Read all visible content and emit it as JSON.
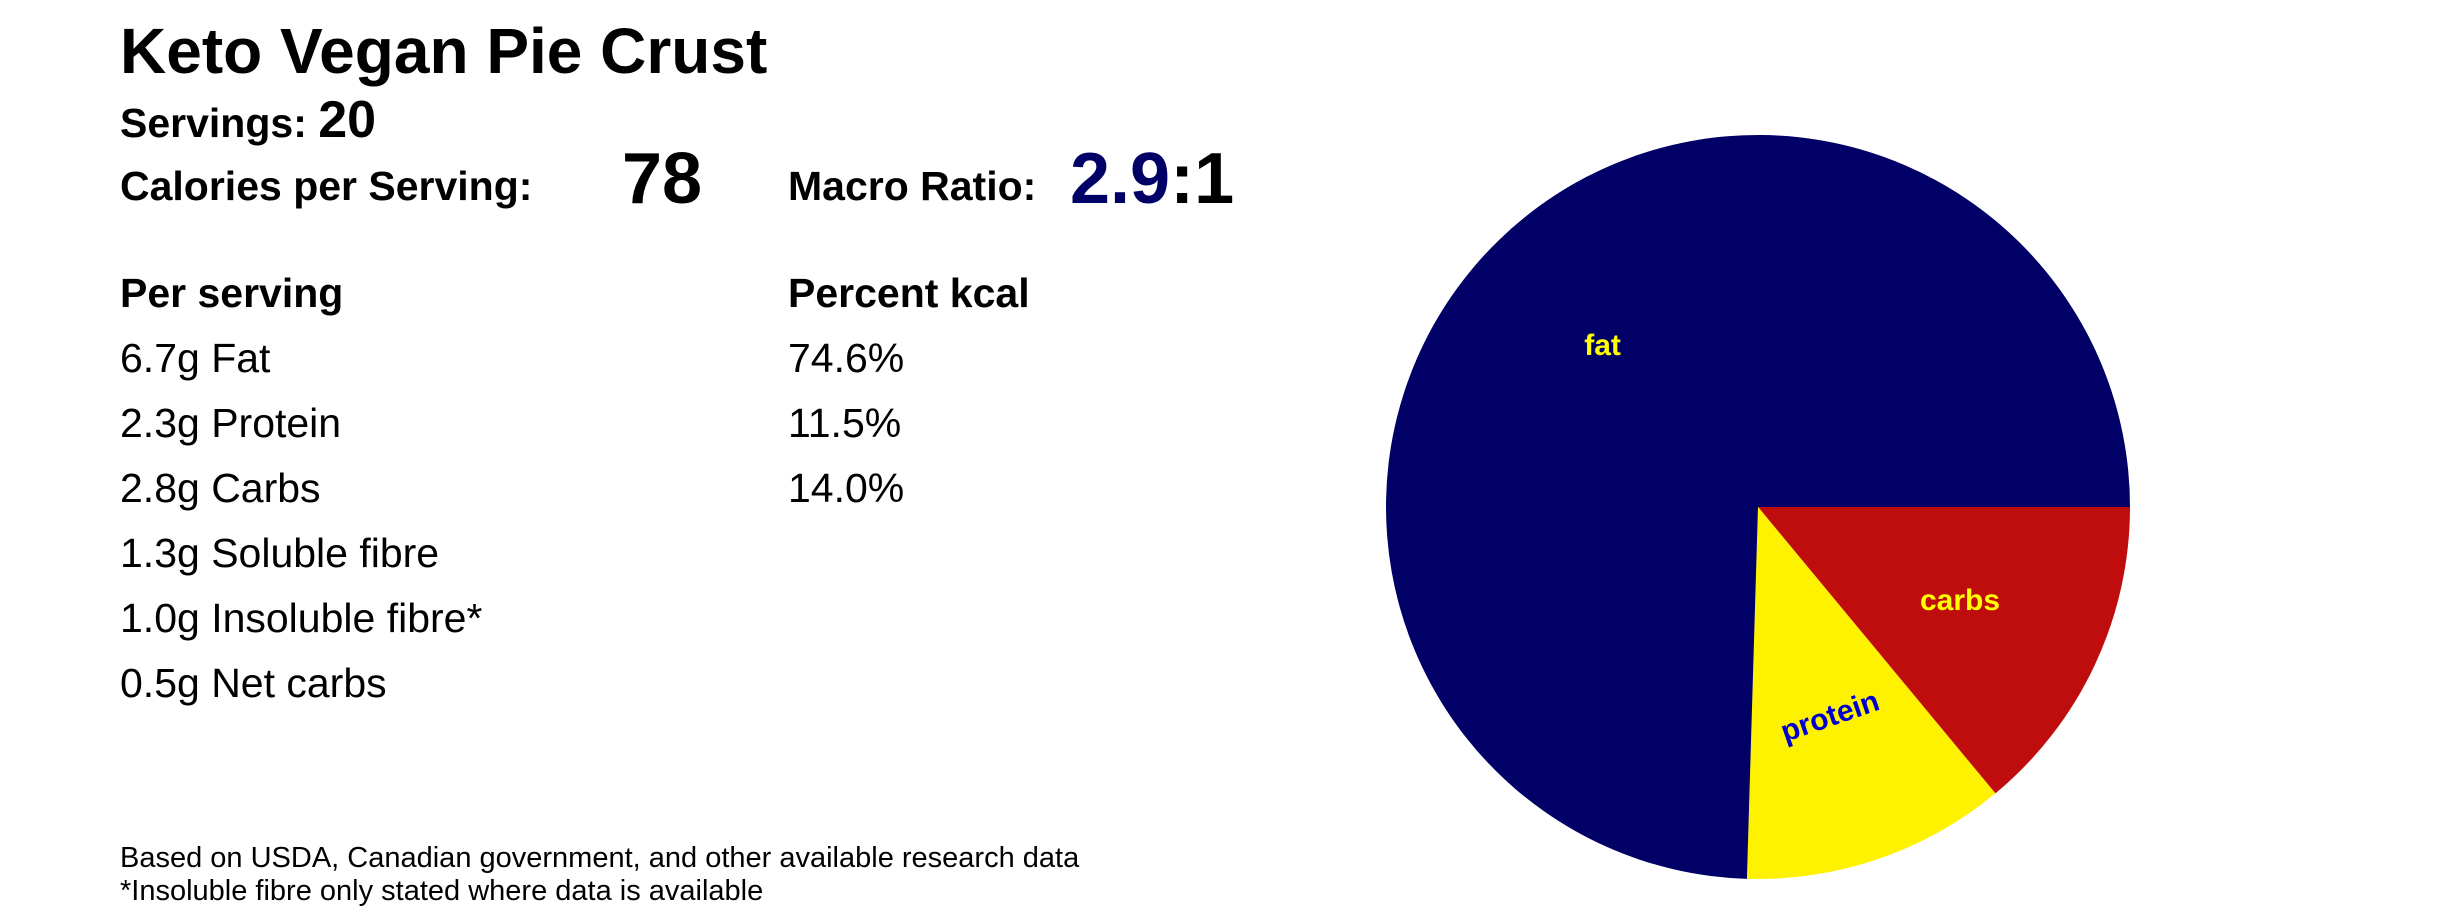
{
  "title": "Keto Vegan Pie Crust",
  "servings": {
    "label": "Servings:",
    "value": "20"
  },
  "calories": {
    "label": "Calories per Serving:",
    "value": "78"
  },
  "macro_ratio": {
    "label": "Macro Ratio:",
    "number": "2.9",
    "suffix": ":1"
  },
  "per_serving": {
    "header": "Per serving",
    "rows": [
      "6.7g Fat",
      "2.3g Protein",
      "2.8g Carbs",
      "1.3g Soluble fibre",
      "1.0g Insoluble fibre*",
      "0.5g Net carbs"
    ]
  },
  "percent_kcal": {
    "header": "Percent kcal",
    "rows": [
      "74.6%",
      "11.5%",
      "14.0%"
    ]
  },
  "footnotes": [
    "Based on USDA, Canadian government, and other available research data",
    "*Insoluble fibre only stated where data is available"
  ],
  "chart_data": {
    "type": "pie",
    "categories": [
      "carbs",
      "protein",
      "fat"
    ],
    "values": [
      14.0,
      11.5,
      74.6
    ],
    "colors": [
      "#bf0d0d",
      "#fff200",
      "#000066"
    ],
    "label_colors": [
      "#ffff00",
      "#0000cc",
      "#ffff00"
    ],
    "start": "3 o'clock",
    "direction": "clockwise"
  }
}
